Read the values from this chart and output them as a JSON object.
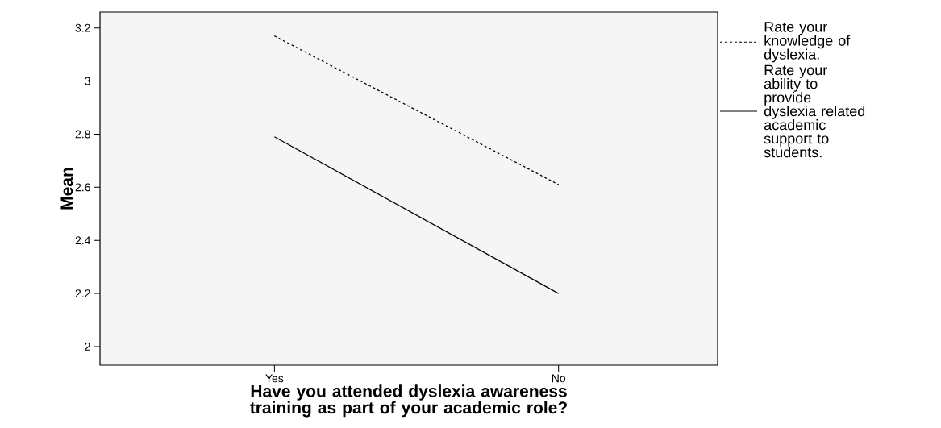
{
  "chart_data": {
    "type": "line",
    "xlabel": "Have you attended dyslexia awareness training as part of your academic role?",
    "ylabel": "Mean",
    "categories": [
      "Yes",
      "No"
    ],
    "series": [
      {
        "name": "Rate your knowledge of dyslexia.",
        "color": "#000000",
        "line_style": "dashed",
        "values": [
          3.17,
          2.61
        ]
      },
      {
        "name": "Rate your ability to provide dyslexia related academic support to students.",
        "color": "#000000",
        "line_style": "solid",
        "values": [
          2.79,
          2.2
        ]
      }
    ],
    "ylim": [
      1.93,
      3.26
    ],
    "yticks": [
      2,
      2.2,
      2.4,
      2.6,
      2.8,
      3,
      3.2
    ],
    "legend": "right",
    "grid": false,
    "marker": "none"
  }
}
